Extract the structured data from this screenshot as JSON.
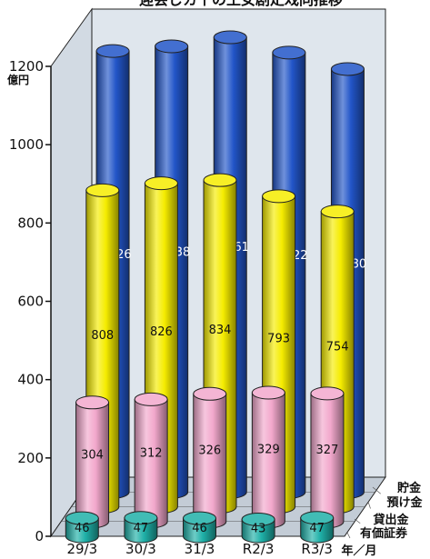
{
  "chart_data": {
    "type": "bar",
    "title": "迎会じカ个の王女剧疋戏同推移",
    "unit": "億円",
    "ylim": [
      0,
      1200
    ],
    "yticks": [
      0,
      200,
      400,
      600,
      800,
      1000,
      1200
    ],
    "categories": [
      "29/3",
      "30/3",
      "31/3",
      "R2/3",
      "R3/3"
    ],
    "category_axis_label": "年／月",
    "grid": false,
    "series": [
      {
        "name": "貯金",
        "values": [
          1126,
          1138,
          1161,
          1122,
          1080
        ],
        "labels": [
          "1, 126",
          "1, 138",
          "1, 161",
          "1, 122",
          "1, 080"
        ],
        "color": "#2255c8"
      },
      {
        "name": "預け金",
        "values": [
          808,
          826,
          834,
          793,
          754
        ],
        "labels": [
          "808",
          "826",
          "834",
          "793",
          "754"
        ],
        "color": "#f5ec00"
      },
      {
        "name": "貸出金",
        "values": [
          304,
          312,
          326,
          329,
          327
        ],
        "labels": [
          "304",
          "312",
          "326",
          "329",
          "327"
        ],
        "color": "#f2a8cc"
      },
      {
        "name": "有価証券",
        "values": [
          46,
          47,
          46,
          43,
          47
        ],
        "labels": [
          "46",
          "47",
          "46",
          "43",
          "47"
        ],
        "color": "#1fb0a8"
      }
    ]
  }
}
